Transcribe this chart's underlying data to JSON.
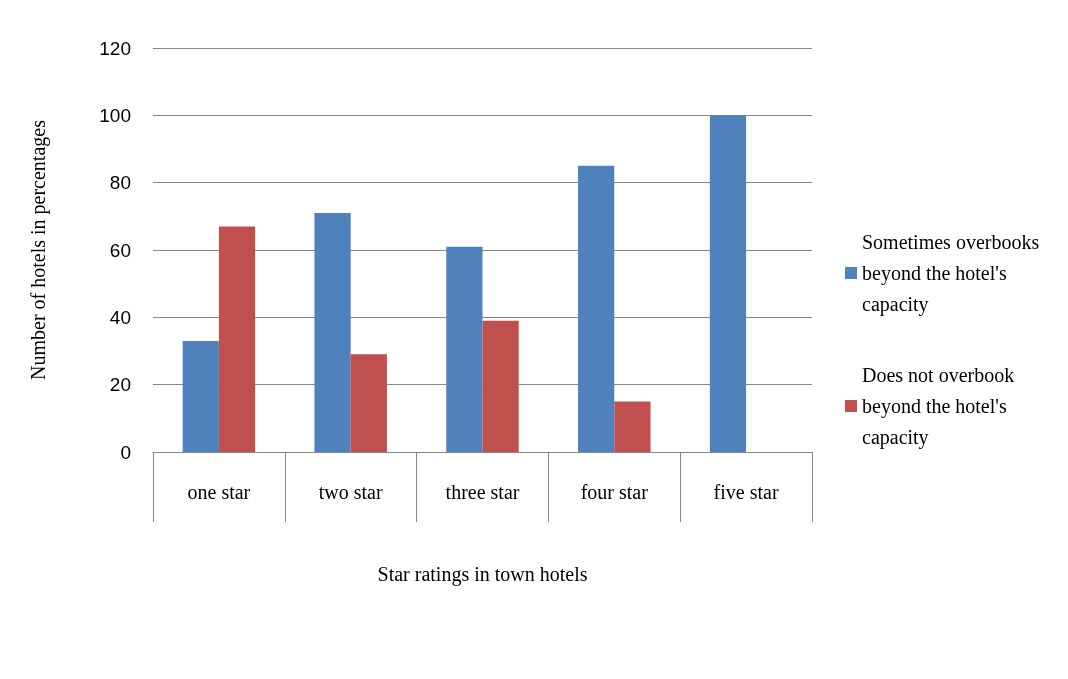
{
  "chart_data": {
    "type": "bar",
    "xlabel": "Star ratings in town hotels",
    "ylabel": "Number of hotels in percentages",
    "categories": [
      "one star",
      "two star",
      "three star",
      "four star",
      "five star"
    ],
    "series": [
      {
        "name": "Sometimes overbooks beyond the hotel's capacity",
        "color": "#4f81bd",
        "values": [
          33,
          71,
          61,
          85,
          100
        ]
      },
      {
        "name": "Does not overbook beyond the hotel's capacity",
        "color": "#c0504d",
        "values": [
          67,
          29,
          39,
          15,
          0
        ]
      }
    ],
    "ylim": [
      0,
      120
    ],
    "yticks": [
      0,
      20,
      40,
      60,
      80,
      100,
      120
    ],
    "grid": "y",
    "legend": "right"
  }
}
